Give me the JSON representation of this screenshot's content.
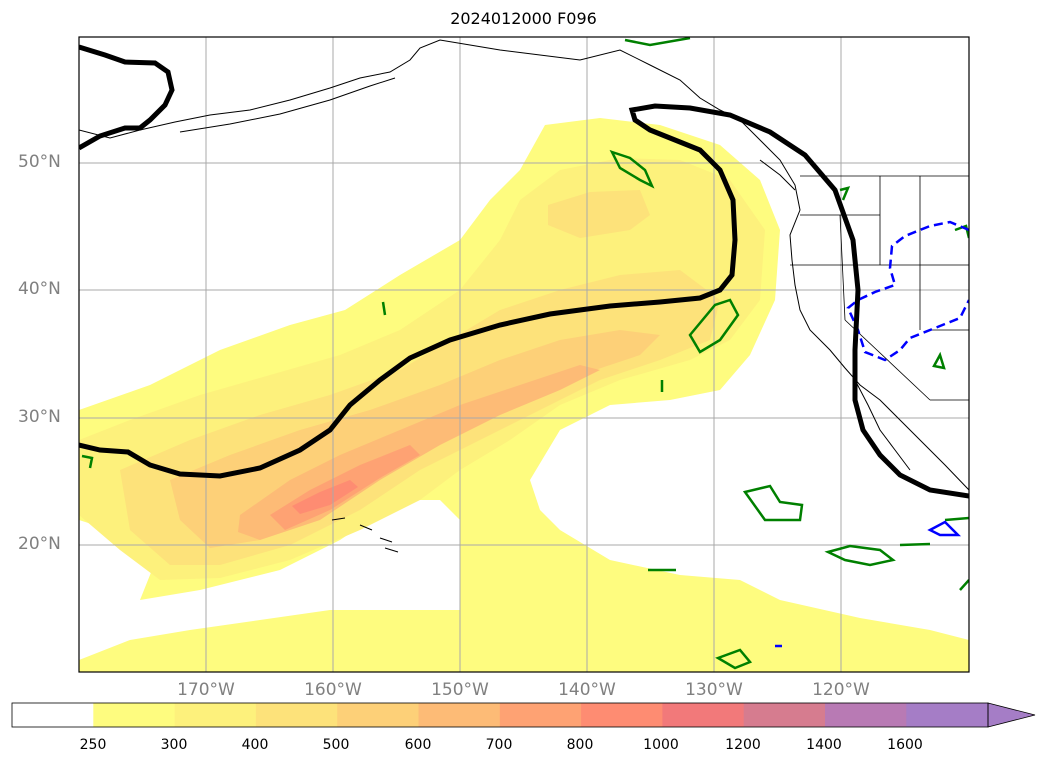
{
  "title": "2024012000 F096",
  "map": {
    "lat_ticks": [
      "50°N",
      "40°N",
      "30°N",
      "20°N"
    ],
    "lon_ticks": [
      "170°W",
      "160°W",
      "150°W",
      "140°W",
      "130°W",
      "120°W"
    ],
    "lon_range": [
      -180,
      -110
    ],
    "lat_range": [
      10,
      60
    ]
  },
  "colorbar": {
    "levels": [
      "250",
      "300",
      "400",
      "500",
      "600",
      "700",
      "800",
      "1000",
      "1200",
      "1400",
      "1600"
    ],
    "colors": [
      "#ffffff",
      "#fefc7f",
      "#fdf17c",
      "#fde27a",
      "#fdd078",
      "#fdbb76",
      "#fea273",
      "#fe8c72",
      "#f2797a",
      "#d67c8f",
      "#b87ab4",
      "#a57dc6"
    ],
    "extend": "max"
  },
  "colors": {
    "jet_contour": "#000000",
    "green_contour": "#008000",
    "blue_contour": "#0000ff",
    "grid": "#a9a9a9"
  }
}
